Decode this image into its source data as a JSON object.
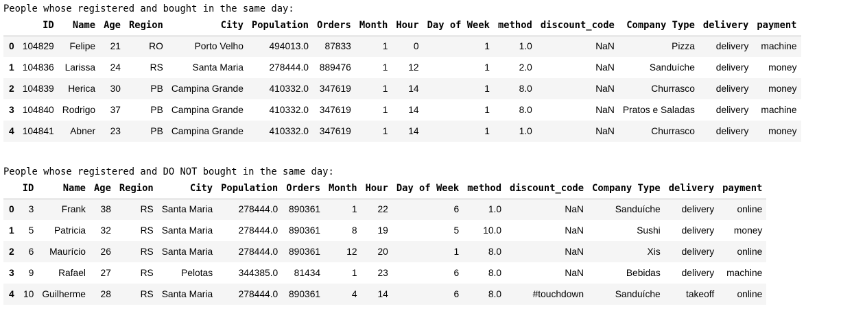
{
  "sections": [
    {
      "caption": "People whose registered and bought in the same day:",
      "columns": [
        "",
        "ID",
        "Name",
        "Age",
        "Region",
        "City",
        "Population",
        "Orders",
        "Month",
        "Hour",
        "Day of Week",
        "method",
        "discount_code",
        "Company Type",
        "delivery",
        "payment"
      ],
      "rows": [
        [
          "0",
          "104829",
          "Felipe",
          "21",
          "RO",
          "Porto Velho",
          "494013.0",
          "87833",
          "1",
          "0",
          "1",
          "1.0",
          "NaN",
          "Pizza",
          "delivery",
          "machine"
        ],
        [
          "1",
          "104836",
          "Larissa",
          "24",
          "RS",
          "Santa Maria",
          "278444.0",
          "889476",
          "1",
          "12",
          "1",
          "2.0",
          "NaN",
          "Sanduíche",
          "delivery",
          "money"
        ],
        [
          "2",
          "104839",
          "Herica",
          "30",
          "PB",
          "Campina Grande",
          "410332.0",
          "347619",
          "1",
          "14",
          "1",
          "8.0",
          "NaN",
          "Churrasco",
          "delivery",
          "money"
        ],
        [
          "3",
          "104840",
          "Rodrigo",
          "37",
          "PB",
          "Campina Grande",
          "410332.0",
          "347619",
          "1",
          "14",
          "1",
          "8.0",
          "NaN",
          "Pratos e Saladas",
          "delivery",
          "machine"
        ],
        [
          "4",
          "104841",
          "Abner",
          "23",
          "PB",
          "Campina Grande",
          "410332.0",
          "347619",
          "1",
          "14",
          "1",
          "1.0",
          "NaN",
          "Churrasco",
          "delivery",
          "money"
        ]
      ]
    },
    {
      "caption": "People whose registered and DO NOT bought in the same day:",
      "columns": [
        "",
        "ID",
        "Name",
        "Age",
        "Region",
        "City",
        "Population",
        "Orders",
        "Month",
        "Hour",
        "Day of Week",
        "method",
        "discount_code",
        "Company Type",
        "delivery",
        "payment"
      ],
      "rows": [
        [
          "0",
          "3",
          "Frank",
          "38",
          "RS",
          "Santa Maria",
          "278444.0",
          "890361",
          "1",
          "22",
          "6",
          "1.0",
          "NaN",
          "Sanduíche",
          "delivery",
          "online"
        ],
        [
          "1",
          "5",
          "Patricia",
          "32",
          "RS",
          "Santa Maria",
          "278444.0",
          "890361",
          "8",
          "19",
          "5",
          "10.0",
          "NaN",
          "Sushi",
          "delivery",
          "money"
        ],
        [
          "2",
          "6",
          "Maurício",
          "26",
          "RS",
          "Santa Maria",
          "278444.0",
          "890361",
          "12",
          "20",
          "1",
          "8.0",
          "NaN",
          "Xis",
          "delivery",
          "online"
        ],
        [
          "3",
          "9",
          "Rafael",
          "27",
          "RS",
          "Pelotas",
          "344385.0",
          "81434",
          "1",
          "23",
          "6",
          "8.0",
          "NaN",
          "Bebidas",
          "delivery",
          "machine"
        ],
        [
          "4",
          "10",
          "Guilherme",
          "28",
          "RS",
          "Santa Maria",
          "278444.0",
          "890361",
          "4",
          "14",
          "6",
          "8.0",
          "#touchdown",
          "Sanduíche",
          "takeoff",
          "online"
        ]
      ]
    }
  ]
}
